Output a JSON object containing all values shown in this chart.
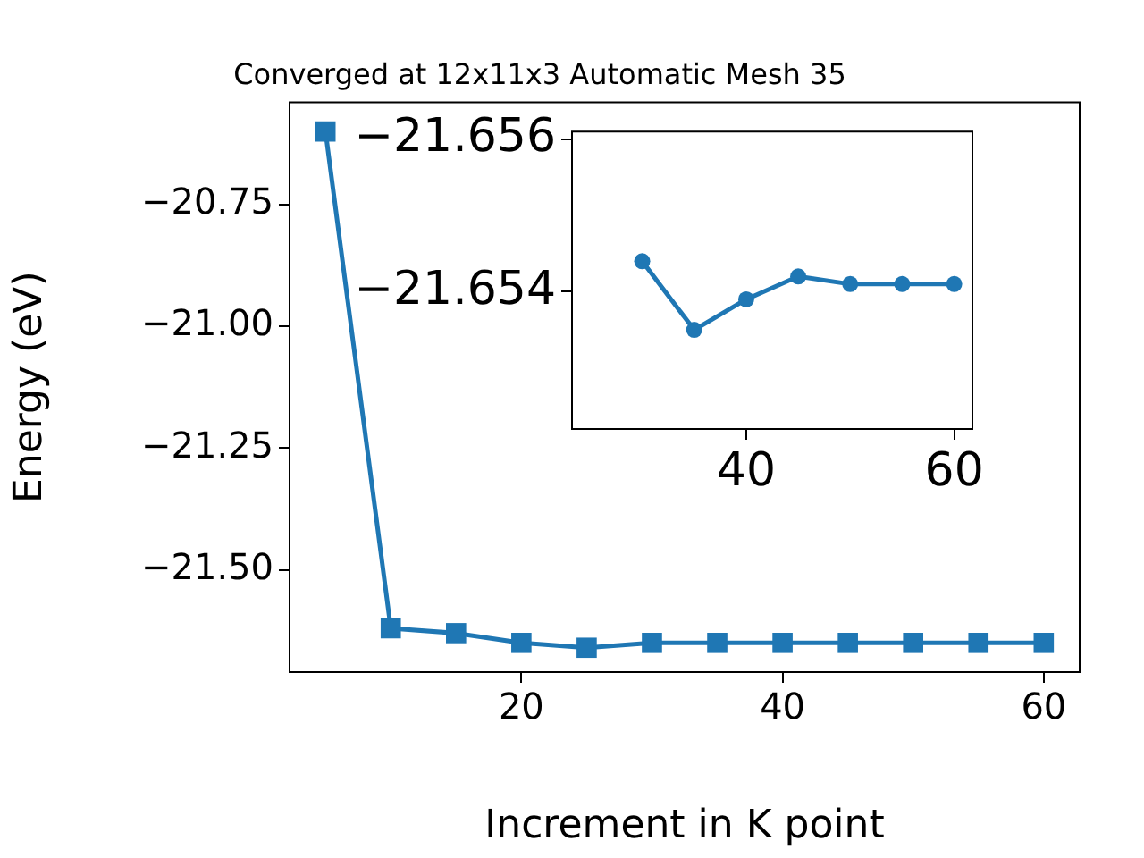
{
  "chart_data": [
    {
      "type": "line",
      "title": "Converged at 12x11x3 Automatic Mesh 35",
      "xlabel": "Increment in K point",
      "ylabel": "Energy (eV)",
      "x": [
        5,
        10,
        15,
        20,
        25,
        30,
        35,
        40,
        45,
        50,
        55,
        60
      ],
      "series": [
        {
          "color": "#1f77b4",
          "values": [
            -20.6,
            -21.62,
            -21.63,
            -21.65,
            -21.66,
            -21.65,
            -21.65,
            -21.65,
            -21.65,
            -21.65,
            -21.65,
            -21.65
          ]
        }
      ],
      "xlim": [
        2.25,
        62.75
      ],
      "xticks": [
        20,
        40,
        60
      ],
      "ylim": [
        -21.71,
        -20.54
      ],
      "yticks": [
        {
          "value": -21.5,
          "label": "−21.50"
        },
        {
          "value": -21.25,
          "label": "−21.25"
        },
        {
          "value": -21.0,
          "label": "−21.00"
        },
        {
          "value": -20.75,
          "label": "−20.75"
        }
      ],
      "grid": false,
      "legend": false,
      "marker": "square",
      "line_style": "solid"
    },
    {
      "type": "line",
      "x": [
        30,
        35,
        40,
        45,
        50,
        55,
        60
      ],
      "series": [
        {
          "color": "#1f77b4",
          "values": [
            -21.6544,
            -21.6535,
            -21.6539,
            -21.6542,
            -21.6541,
            -21.6541,
            -21.6541
          ]
        }
      ],
      "xlim": [
        23.25,
        61.75
      ],
      "xticks": [
        40,
        60
      ],
      "ylim": [
        -21.6522,
        -21.6561
      ],
      "yticks": [
        {
          "value": -21.656,
          "label": "−21.656"
        },
        {
          "value": -21.654,
          "label": "−21.654"
        }
      ],
      "grid": false,
      "legend": false,
      "marker": "circle",
      "line_style": "solid"
    }
  ]
}
